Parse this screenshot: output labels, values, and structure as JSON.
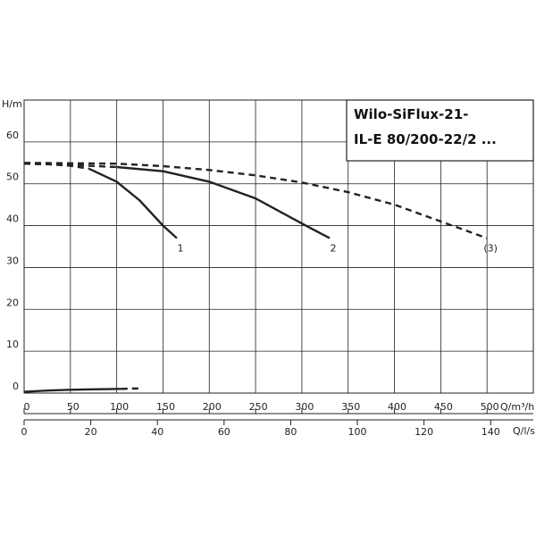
{
  "chart_data": {
    "type": "line",
    "title_lines": [
      "Wilo-SiFlux-21-",
      "IL-E 80/200-22/2 ..."
    ],
    "y_label": "H/m",
    "x_label": "Q/m³/h",
    "x2_label": "Q/l/s",
    "xlim": [
      0,
      550
    ],
    "xticks": [
      0,
      50,
      100,
      150,
      200,
      250,
      300,
      350,
      400,
      450,
      500
    ],
    "x2lim": [
      0,
      152.8
    ],
    "x2ticks": [
      0,
      20,
      40,
      60,
      80,
      100,
      120,
      140
    ],
    "ylim": [
      0,
      70
    ],
    "yticks": [
      0,
      10,
      20,
      30,
      40,
      50,
      60
    ],
    "grid": true,
    "series": [
      {
        "x": [
          0,
          25,
          50,
          70
        ],
        "values": [
          54.8,
          54.7,
          54.3,
          53.6
        ],
        "dashed": true,
        "color": "#222"
      },
      {
        "name": "1",
        "x": [
          70,
          100,
          125,
          150,
          165
        ],
        "values": [
          53.6,
          50.5,
          46,
          40,
          37
        ],
        "dashed": false,
        "color": "#222"
      },
      {
        "x": [
          0,
          50,
          100
        ],
        "values": [
          54.8,
          54.5,
          54
        ],
        "dashed": true,
        "color": "#222"
      },
      {
        "name": "2",
        "x": [
          100,
          150,
          200,
          250,
          300,
          330
        ],
        "values": [
          54,
          53,
          50.5,
          46.5,
          40.5,
          37
        ],
        "dashed": false,
        "color": "#222"
      },
      {
        "name": "(3)",
        "x": [
          0,
          100,
          150,
          200,
          250,
          300,
          350,
          400,
          450,
          500
        ],
        "values": [
          55,
          54.8,
          54.2,
          53.3,
          52,
          50.3,
          48,
          45,
          41,
          37
        ],
        "dashed": true,
        "color": "#222"
      },
      {
        "x": [
          0,
          25,
          50,
          75,
          105
        ],
        "values": [
          0.3,
          0.6,
          0.8,
          0.9,
          1
        ],
        "dashed": false,
        "color": "#222"
      },
      {
        "x": [
          105,
          125
        ],
        "values": [
          1,
          1.1
        ],
        "dashed": true,
        "color": "#222"
      }
    ]
  }
}
